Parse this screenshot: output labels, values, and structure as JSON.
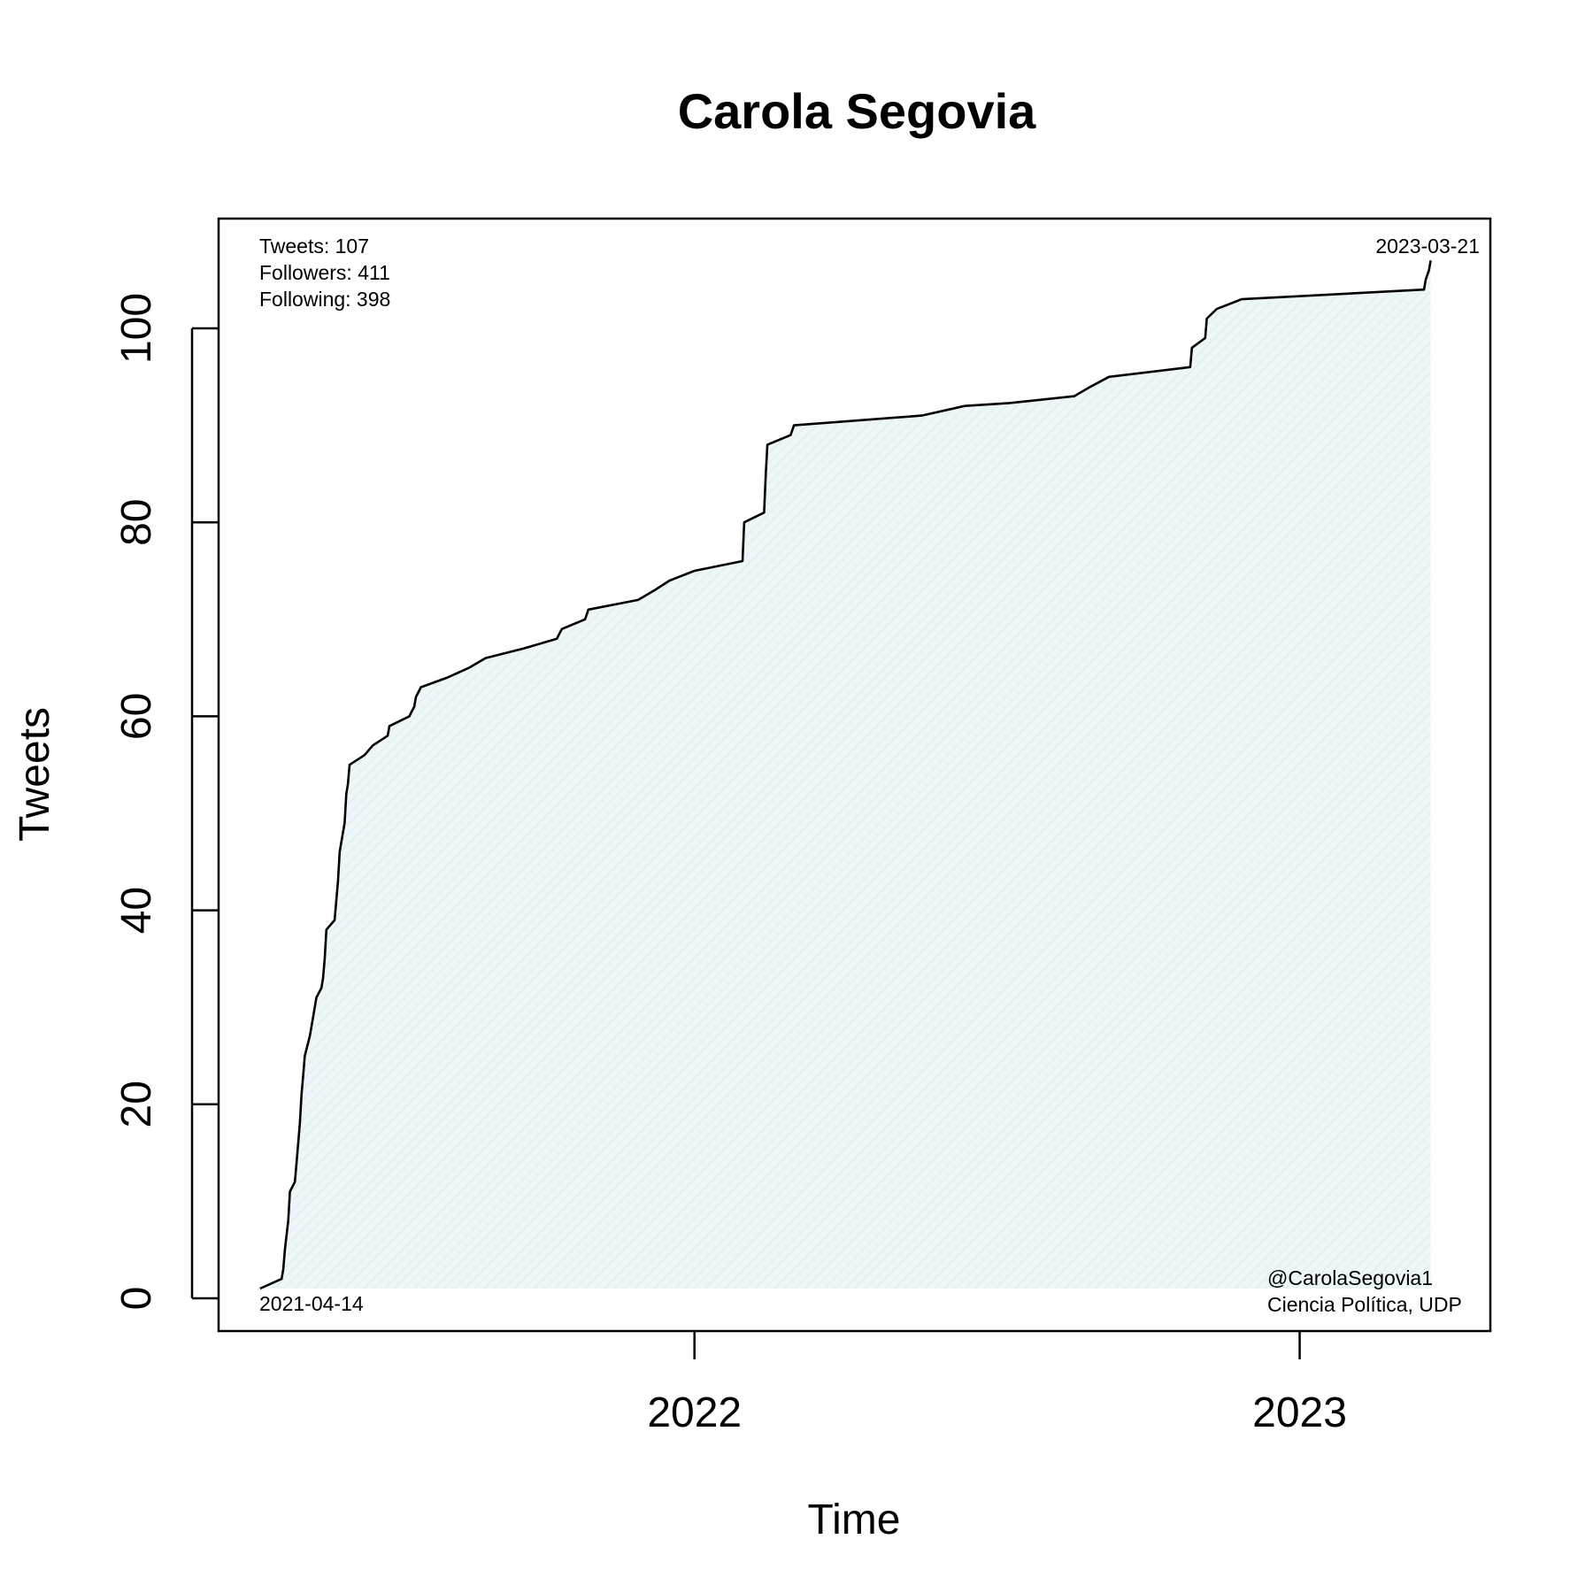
{
  "chart_data": {
    "type": "area",
    "title": "Carola Segovia",
    "xlabel": "Time",
    "ylabel": "Tweets",
    "x_ticks": [
      "2022",
      "2023"
    ],
    "y_ticks": [
      0,
      20,
      40,
      60,
      80,
      100
    ],
    "ylim": [
      0,
      110
    ],
    "xlim": [
      "2021-03-20",
      "2023-04-26"
    ],
    "grid": false,
    "fill_color": "#e8f3f6",
    "line_color": "#000000",
    "start_label": "2021-04-14",
    "end_label": "2023-03-21",
    "stats": [
      "Tweets: 107",
      "Followers: 411",
      "Following: 398"
    ],
    "credits": [
      "@CarolaSegovia1",
      "Ciencia Política, UDP"
    ],
    "series": [
      {
        "points": [
          [
            "2021-04-14",
            1
          ],
          [
            "2021-04-27",
            2
          ],
          [
            "2021-04-28",
            3
          ],
          [
            "2021-04-29",
            5
          ],
          [
            "2021-05-01",
            8
          ],
          [
            "2021-05-02",
            11
          ],
          [
            "2021-05-05",
            12
          ],
          [
            "2021-05-06",
            14
          ],
          [
            "2021-05-08",
            18
          ],
          [
            "2021-05-09",
            21
          ],
          [
            "2021-05-10",
            23
          ],
          [
            "2021-05-11",
            25
          ],
          [
            "2021-05-14",
            27
          ],
          [
            "2021-05-16",
            29
          ],
          [
            "2021-05-18",
            31
          ],
          [
            "2021-05-21",
            32
          ],
          [
            "2021-05-22",
            33
          ],
          [
            "2021-05-23",
            35
          ],
          [
            "2021-05-24",
            38
          ],
          [
            "2021-05-29",
            39
          ],
          [
            "2021-05-30",
            41
          ],
          [
            "2021-05-31",
            43
          ],
          [
            "2021-06-01",
            46
          ],
          [
            "2021-06-02",
            47
          ],
          [
            "2021-06-04",
            49
          ],
          [
            "2021-06-05",
            52
          ],
          [
            "2021-06-06",
            53
          ],
          [
            "2021-06-07",
            55
          ],
          [
            "2021-06-16",
            56
          ],
          [
            "2021-06-21",
            57
          ],
          [
            "2021-06-30",
            58
          ],
          [
            "2021-07-01",
            59
          ],
          [
            "2021-07-13",
            60
          ],
          [
            "2021-07-16",
            61
          ],
          [
            "2021-07-17",
            62
          ],
          [
            "2021-07-20",
            63
          ],
          [
            "2021-08-05",
            64
          ],
          [
            "2021-08-18",
            65
          ],
          [
            "2021-08-28",
            66
          ],
          [
            "2021-09-20",
            67
          ],
          [
            "2021-10-10",
            68
          ],
          [
            "2021-10-13",
            69
          ],
          [
            "2021-10-27",
            70
          ],
          [
            "2021-10-29",
            71
          ],
          [
            "2021-11-28",
            72
          ],
          [
            "2021-12-08",
            73
          ],
          [
            "2021-12-17",
            74
          ],
          [
            "2022-01-01",
            75
          ],
          [
            "2022-01-30",
            76
          ],
          [
            "2022-01-31",
            80
          ],
          [
            "2022-02-12",
            81
          ],
          [
            "2022-02-13",
            85
          ],
          [
            "2022-02-14",
            88
          ],
          [
            "2022-02-28",
            89
          ],
          [
            "2022-03-02",
            90
          ],
          [
            "2022-05-18",
            91
          ],
          [
            "2022-06-13",
            92
          ],
          [
            "2022-07-10",
            92.3
          ],
          [
            "2022-08-18",
            93
          ],
          [
            "2022-08-28",
            94
          ],
          [
            "2022-09-08",
            95
          ],
          [
            "2022-10-27",
            96
          ],
          [
            "2022-10-28",
            98
          ],
          [
            "2022-11-05",
            99
          ],
          [
            "2022-11-06",
            101
          ],
          [
            "2022-11-12",
            102
          ],
          [
            "2022-11-27",
            103
          ],
          [
            "2023-03-17",
            104
          ],
          [
            "2023-03-18",
            105
          ],
          [
            "2023-03-20",
            106
          ],
          [
            "2023-03-21",
            107
          ]
        ]
      }
    ]
  }
}
